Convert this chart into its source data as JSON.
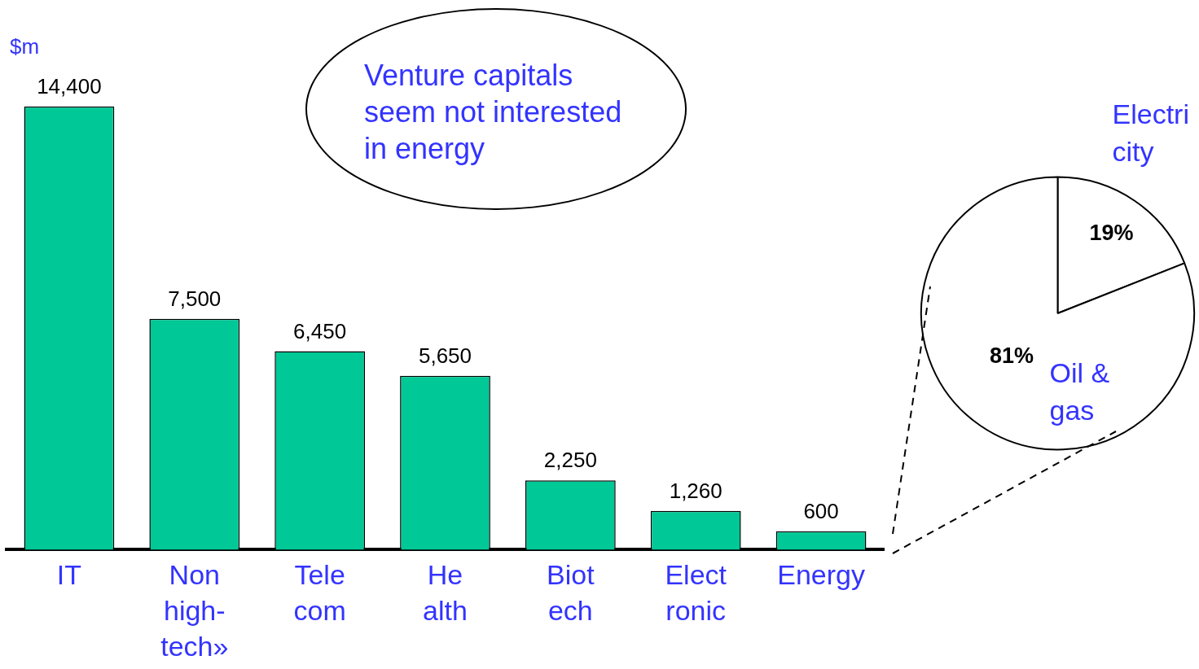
{
  "chart_data": [
    {
      "type": "bar",
      "ylabel": "$m",
      "categories": [
        "IT",
        "Non\nhigh-\ntech»",
        "Tele\ncom",
        "He\nalth",
        "Biot\nech",
        "Elect\nronic",
        "Energy"
      ],
      "values": [
        14400,
        7500,
        6450,
        5650,
        2250,
        1260,
        600
      ],
      "value_labels": [
        "14,400",
        "7,500",
        "6,450",
        "5,650",
        "2,250",
        "1,260",
        "600"
      ],
      "color": "#00c896",
      "annotations": [
        "Venture capitals\nseem not interested\nin energy"
      ]
    },
    {
      "type": "pie",
      "categories": [
        "Electri\ncity",
        "Oil &\ngas"
      ],
      "values": [
        19,
        81
      ],
      "value_labels": [
        "19%",
        "81%"
      ],
      "colors": [
        "#ffffff",
        "#ffffff"
      ]
    }
  ]
}
